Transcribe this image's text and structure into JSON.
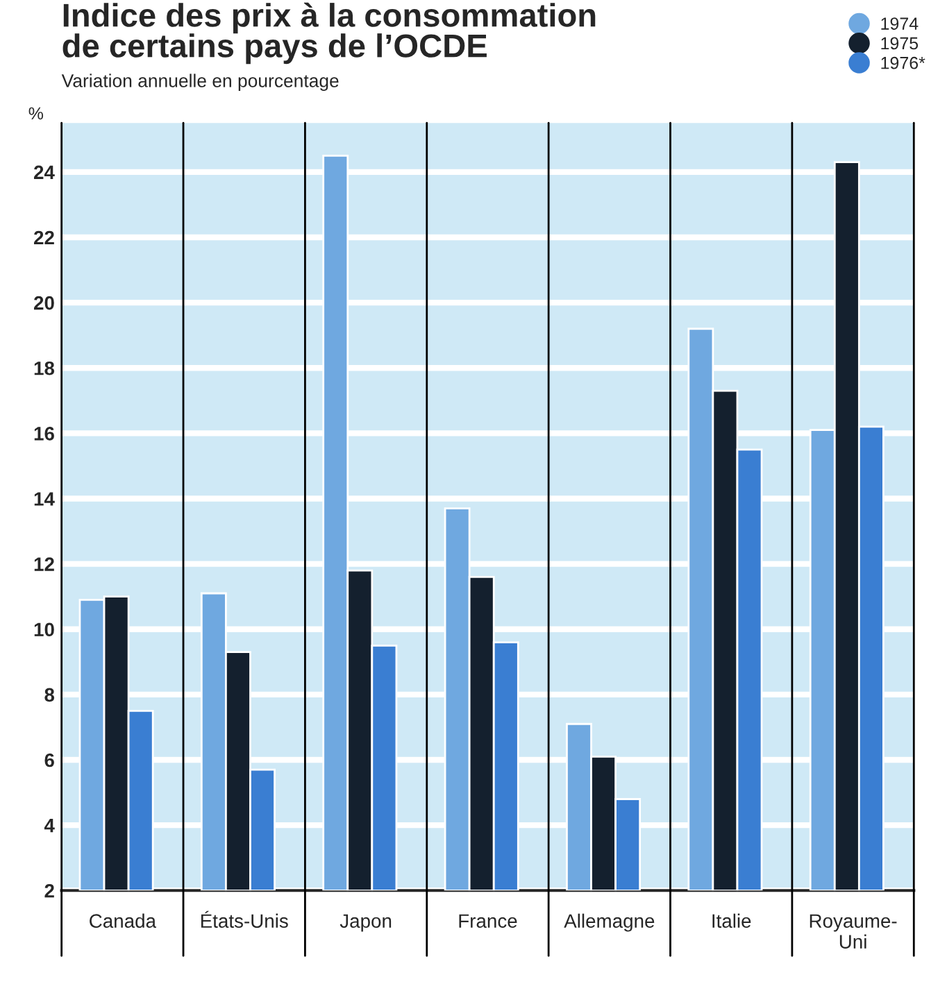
{
  "chart_data": {
    "type": "bar",
    "title": "Indice des prix à la consommation\nde certains pays de l’OCDE",
    "subtitle": "Variation annuelle en pourcentage",
    "ylabel": "%",
    "categories": [
      "Canada",
      "États-Unis",
      "Japon",
      "France",
      "Allemagne",
      "Italie",
      "Royaume-\nUni"
    ],
    "series": [
      {
        "name": "1974",
        "color": "#6fa8e0",
        "values": [
          10.9,
          11.1,
          24.5,
          13.7,
          7.1,
          19.2,
          16.1
        ]
      },
      {
        "name": "1975",
        "color": "#14202e",
        "values": [
          11.0,
          9.3,
          11.8,
          11.6,
          6.1,
          17.3,
          24.3
        ]
      },
      {
        "name": "1976*",
        "color": "#3a7ed2",
        "values": [
          7.5,
          5.7,
          9.5,
          9.6,
          4.8,
          15.5,
          16.2
        ]
      }
    ],
    "ylim": [
      2,
      25.5
    ],
    "yticks": [
      2,
      4,
      6,
      8,
      10,
      12,
      14,
      16,
      18,
      20,
      22,
      24
    ],
    "grid": "y",
    "legend": "top right"
  }
}
